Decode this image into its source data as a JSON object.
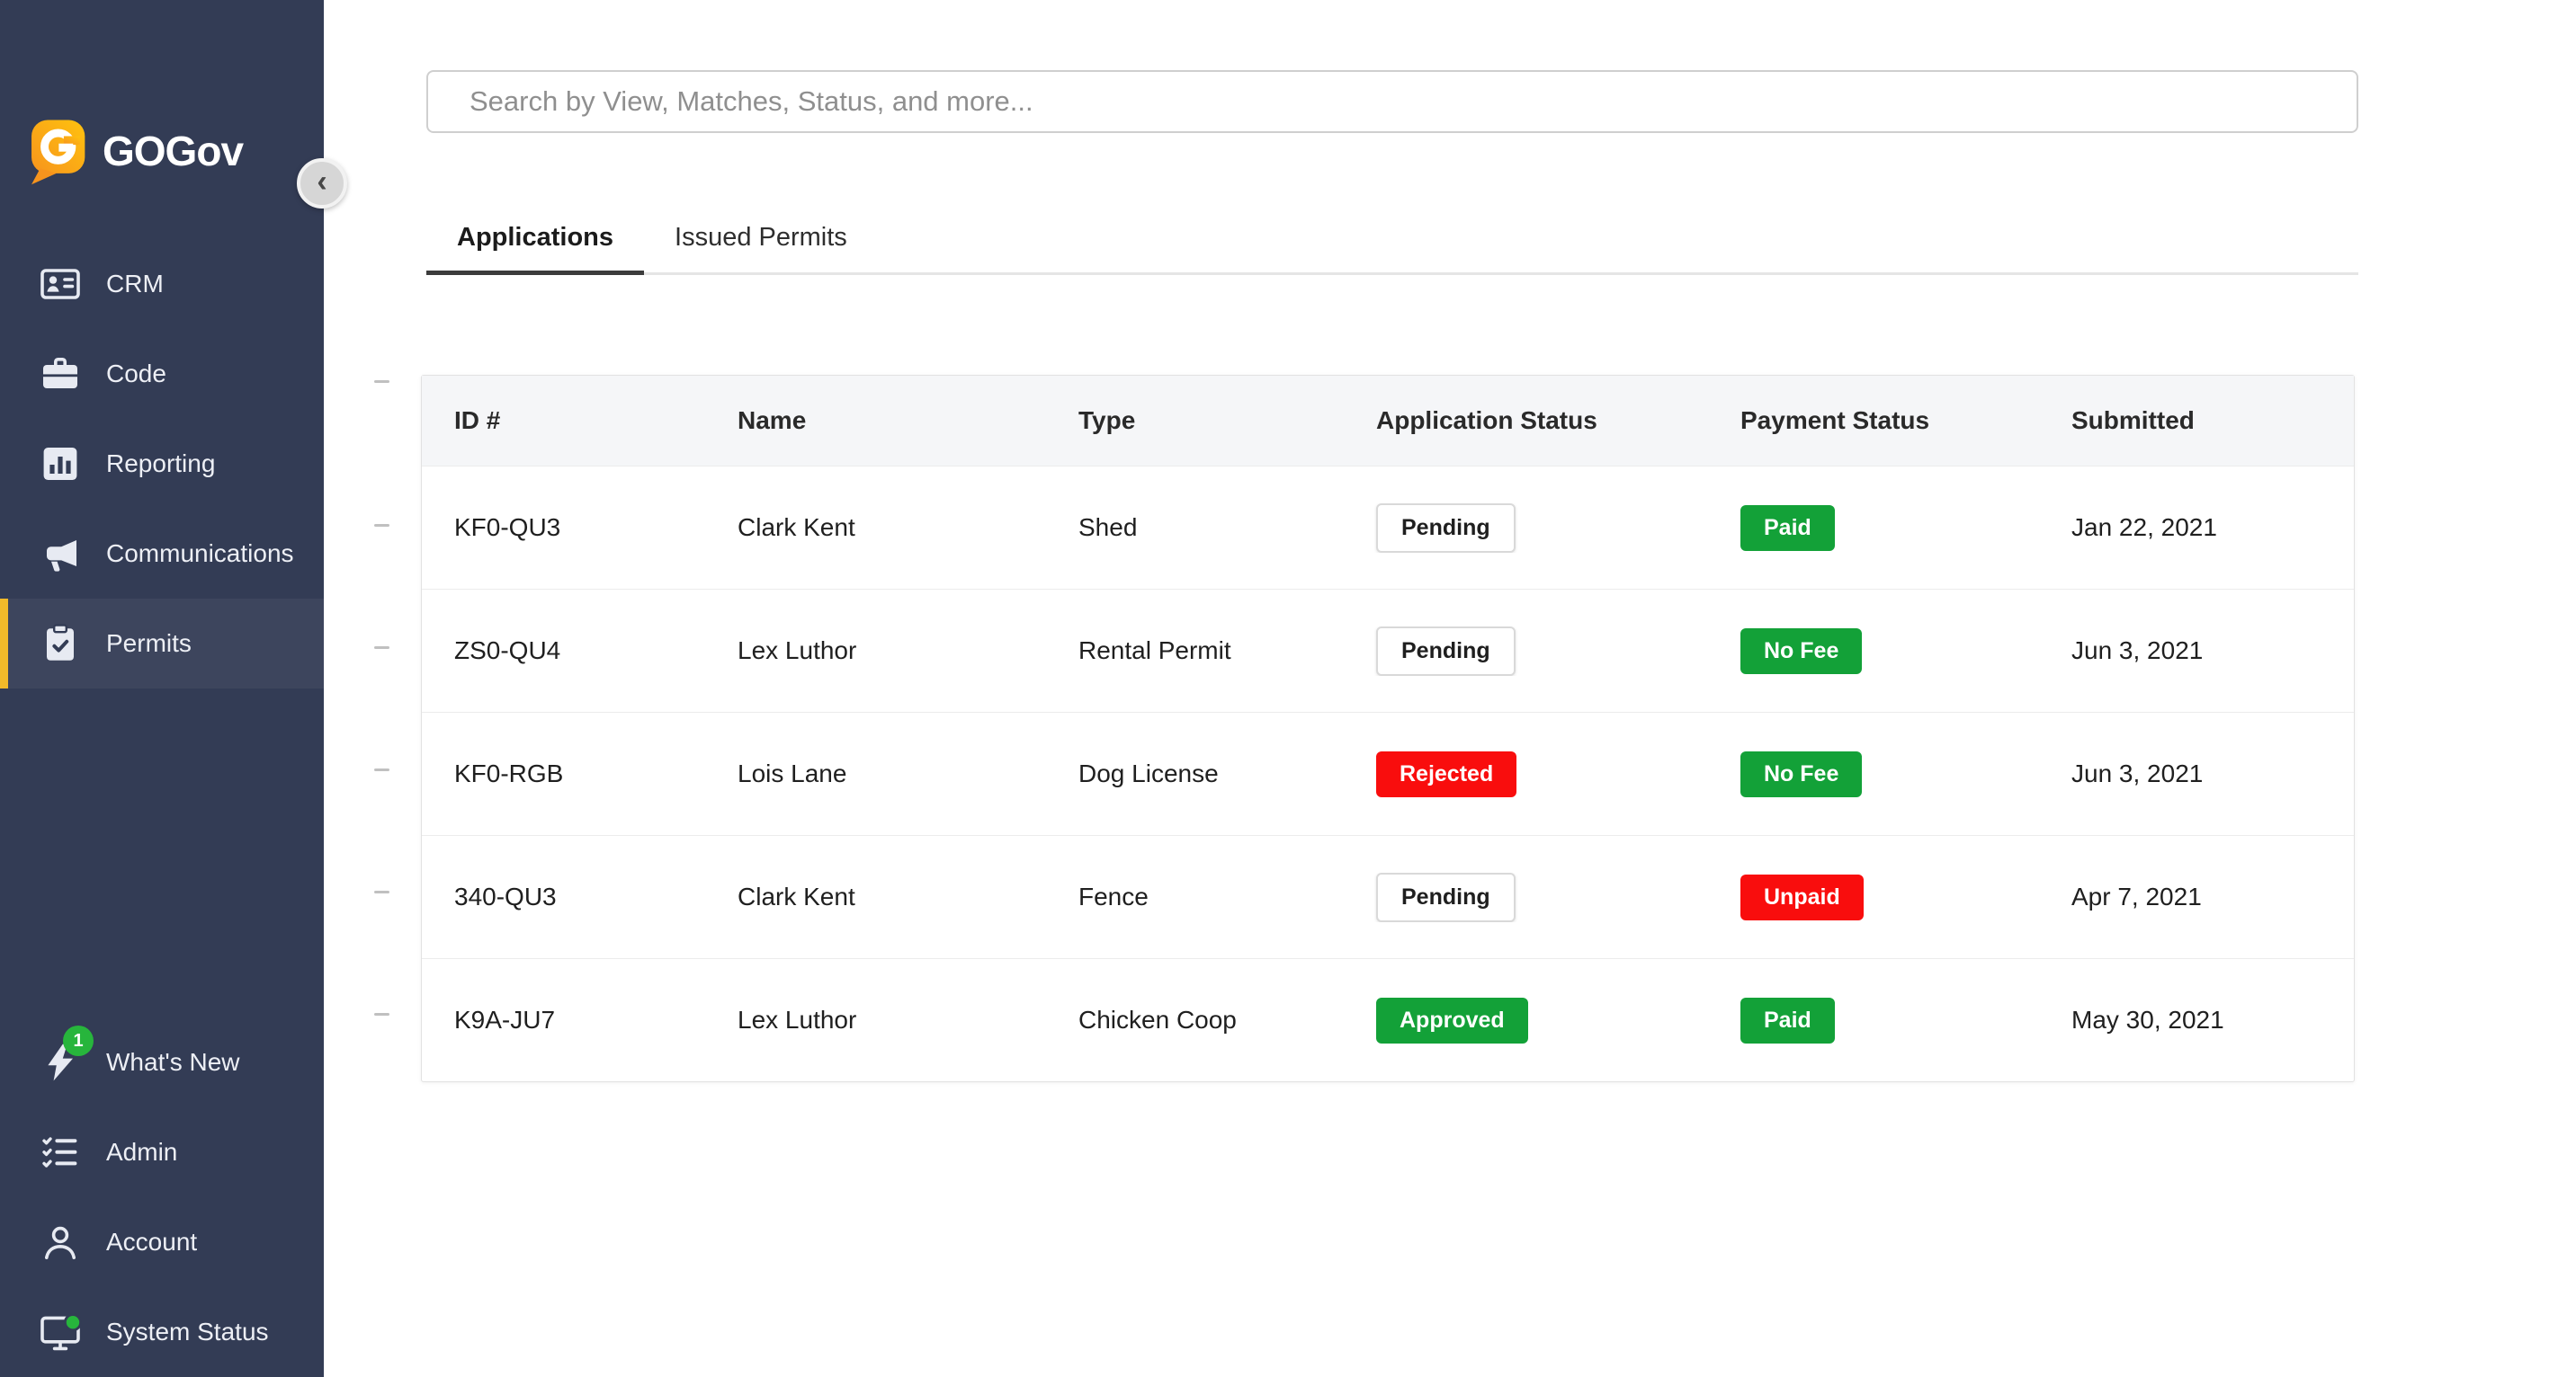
{
  "colors": {
    "sidebar_bg": "#333C55",
    "accent_yellow": "#F2BA2A",
    "green": "#13A138",
    "red": "#F90D0D",
    "tab_underline": "#3C3C3C",
    "whats_new_badge_green": "#27B53C"
  },
  "sidebar": {
    "logo_text": "GOGov",
    "collapse_icon": "chevron-left",
    "items": [
      {
        "label": "CRM",
        "icon": "id-card",
        "active": false
      },
      {
        "label": "Code",
        "icon": "briefcase",
        "active": false
      },
      {
        "label": "Reporting",
        "icon": "bar-chart",
        "active": false
      },
      {
        "label": "Communications",
        "icon": "megaphone",
        "active": false
      },
      {
        "label": "Permits",
        "icon": "clipboard-check",
        "active": true
      }
    ],
    "bottom_items": [
      {
        "label": "What's New",
        "icon": "lightning",
        "badge": "1",
        "active": false
      },
      {
        "label": "Admin",
        "icon": "checklist",
        "active": false
      },
      {
        "label": "Account",
        "icon": "person",
        "active": false
      },
      {
        "label": "System Status",
        "icon": "monitor-status",
        "active": false
      }
    ]
  },
  "search": {
    "placeholder": "Search by View, Matches, Status, and more..."
  },
  "tabs": [
    {
      "label": "Applications",
      "active": true
    },
    {
      "label": "Issued Permits",
      "active": false
    }
  ],
  "table": {
    "headers": [
      "ID #",
      "Name",
      "Type",
      "Application Status",
      "Payment Status",
      "Submitted"
    ],
    "rows": [
      {
        "id": "KF0-QU3",
        "name": "Clark Kent",
        "type": "Shed",
        "application_status": {
          "label": "Pending",
          "variant": "outline"
        },
        "payment_status": {
          "label": "Paid",
          "variant": "green"
        },
        "submitted": "Jan 22, 2021"
      },
      {
        "id": "ZS0-QU4",
        "name": "Lex Luthor",
        "type": "Rental Permit",
        "application_status": {
          "label": "Pending",
          "variant": "outline"
        },
        "payment_status": {
          "label": "No Fee",
          "variant": "green"
        },
        "submitted": "Jun 3, 2021"
      },
      {
        "id": "KF0-RGB",
        "name": "Lois Lane",
        "type": "Dog License",
        "application_status": {
          "label": "Rejected",
          "variant": "red"
        },
        "payment_status": {
          "label": "No Fee",
          "variant": "green"
        },
        "submitted": "Jun 3, 2021"
      },
      {
        "id": "340-QU3",
        "name": "Clark Kent",
        "type": "Fence",
        "application_status": {
          "label": "Pending",
          "variant": "outline"
        },
        "payment_status": {
          "label": "Unpaid",
          "variant": "red"
        },
        "submitted": "Apr 7, 2021"
      },
      {
        "id": "K9A-JU7",
        "name": "Lex Luthor",
        "type": "Chicken Coop",
        "application_status": {
          "label": "Approved",
          "variant": "green"
        },
        "payment_status": {
          "label": "Paid",
          "variant": "green"
        },
        "submitted": "May 30, 2021"
      }
    ]
  }
}
